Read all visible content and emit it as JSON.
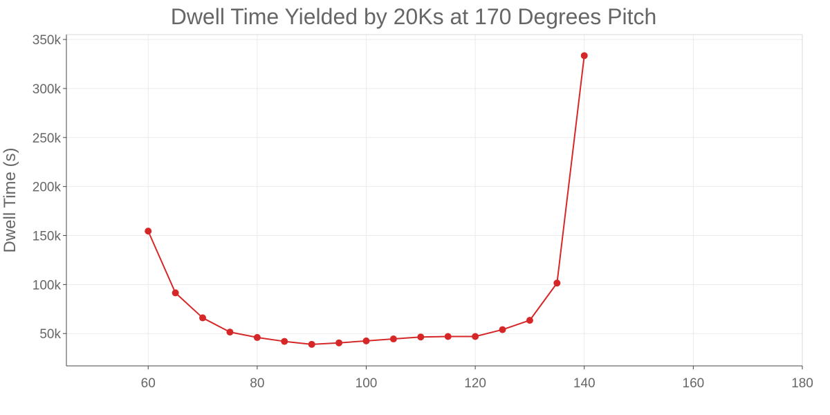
{
  "chart_data": {
    "type": "line",
    "title": "Dwell Time Yielded by 20Ks at 170 Degrees Pitch",
    "xlabel": "",
    "ylabel": "Dwell Time (s)",
    "xlim": [
      45,
      180
    ],
    "ylim": [
      17000,
      355000
    ],
    "x_ticks": [
      60,
      80,
      100,
      120,
      140,
      160,
      180
    ],
    "x_tick_labels": [
      "60",
      "80",
      "100",
      "120",
      "140",
      "160",
      "180"
    ],
    "y_ticks": [
      50000,
      100000,
      150000,
      200000,
      250000,
      300000,
      350000
    ],
    "y_tick_labels": [
      "50k",
      "100k",
      "150k",
      "200k",
      "250k",
      "300k",
      "350k"
    ],
    "grid": true,
    "colors": {
      "series": "#d62728",
      "text": "#666666",
      "grid": "#ebebeb",
      "axis": "#444444"
    },
    "series": [
      {
        "x": [
          60,
          65,
          70,
          75,
          80,
          85,
          90,
          95,
          100,
          105,
          110,
          115,
          120,
          125,
          130,
          135,
          140
        ],
        "y": [
          154500,
          91500,
          66000,
          51500,
          46000,
          42000,
          39000,
          40500,
          42500,
          44500,
          46500,
          47000,
          47000,
          54000,
          63500,
          101500,
          333500
        ]
      }
    ]
  }
}
